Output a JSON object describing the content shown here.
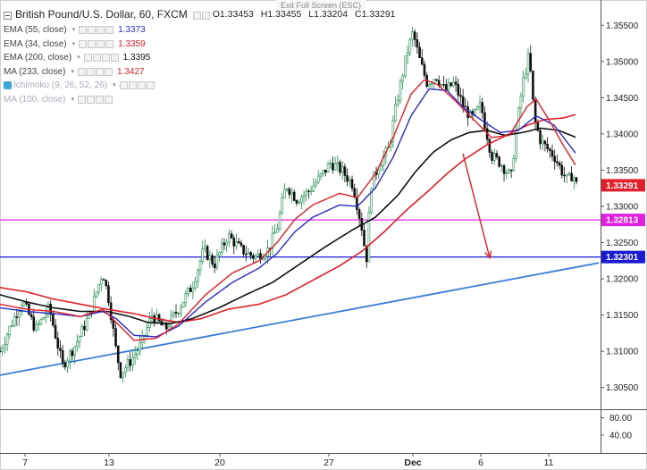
{
  "window": {
    "exit_fullscreen_label": "Exit Full Screen (ESC)"
  },
  "legend": {
    "symbol": "British Pound/U.S. Dollar, 60, FXCM",
    "ohlc": {
      "o": "O1.33453",
      "h": "H1.33455",
      "l": "L1.33204",
      "c": "C1.33291"
    },
    "studies": [
      {
        "name": "EMA (55, close)",
        "value": "1.3373",
        "color": "#2b2bc4"
      },
      {
        "name": "EMA (34, close)",
        "value": "1.3359",
        "color": "#e0202a"
      },
      {
        "name": "EMA (200, close)",
        "value": "1.3395",
        "color": "#111111"
      },
      {
        "name": "MA (233, close)",
        "value": "1.3427",
        "color": "#e0202a"
      },
      {
        "name": "Ichimoku (9, 26, 52, 26)",
        "value": "",
        "color": "#aab"
      },
      {
        "name": "MA (100, close)",
        "value": "",
        "color": "#aab"
      }
    ]
  },
  "chart_data": {
    "type": "candlestick",
    "price_axis": {
      "min": 1.302,
      "max": 1.3575,
      "ticks": [
        "1.35500",
        "1.35000",
        "1.34500",
        "1.34000",
        "1.33500",
        "1.33000",
        "1.32500",
        "1.32000",
        "1.31500",
        "1.31000",
        "1.30500"
      ]
    },
    "price_labels": [
      {
        "value": 1.33291,
        "text": "1.33291",
        "color": "#e0202a"
      },
      {
        "value": 1.32813,
        "text": "1.32813",
        "color": "#e020e0"
      },
      {
        "value": 1.32301,
        "text": "1.32301",
        "color": "#1a1ad0"
      }
    ],
    "lower_pane": {
      "ticks": [
        "80.00",
        "40.00"
      ]
    },
    "x_axis": {
      "labels": [
        {
          "text": "7",
          "bar": 28
        },
        {
          "text": "13",
          "bar": 122
        },
        {
          "text": "20",
          "bar": 246
        },
        {
          "text": "27",
          "bar": 368
        },
        {
          "text": "Dec",
          "bar": 462
        },
        {
          "text": "6",
          "bar": 538
        },
        {
          "text": "11",
          "bar": 614
        }
      ]
    },
    "horizontal_lines": [
      {
        "value": 1.32813,
        "color": "#e020e0"
      },
      {
        "value": 1.32301,
        "color": "#1a1ad0"
      }
    ],
    "trendline": {
      "from": [
        0,
        1.3067
      ],
      "to": [
        670,
        1.3222
      ],
      "color": "#3a7ad8"
    },
    "projection_arrow": {
      "from": [
        518,
        1.3373
      ],
      "to": [
        548,
        1.3229
      ],
      "color": "#e02020"
    },
    "anchors": {
      "price": [
        [
          0,
          1.31
        ],
        [
          10,
          1.313
        ],
        [
          25,
          1.317
        ],
        [
          40,
          1.313
        ],
        [
          55,
          1.316
        ],
        [
          70,
          1.308
        ],
        [
          85,
          1.311
        ],
        [
          100,
          1.315
        ],
        [
          115,
          1.321
        ],
        [
          122,
          1.317
        ],
        [
          130,
          1.31
        ],
        [
          135,
          1.307
        ],
        [
          145,
          1.3085
        ],
        [
          158,
          1.311
        ],
        [
          170,
          1.315
        ],
        [
          185,
          1.313
        ],
        [
          200,
          1.316
        ],
        [
          215,
          1.319
        ],
        [
          228,
          1.324
        ],
        [
          240,
          1.322
        ],
        [
          255,
          1.326
        ],
        [
          270,
          1.324
        ],
        [
          285,
          1.323
        ],
        [
          300,
          1.324
        ],
        [
          310,
          1.327
        ],
        [
          320,
          1.333
        ],
        [
          332,
          1.331
        ],
        [
          345,
          1.332
        ],
        [
          358,
          1.334
        ],
        [
          370,
          1.336
        ],
        [
          382,
          1.335
        ],
        [
          395,
          1.333
        ],
        [
          405,
          1.327
        ],
        [
          410,
          1.3225
        ],
        [
          415,
          1.333
        ],
        [
          425,
          1.336
        ],
        [
          435,
          1.338
        ],
        [
          445,
          1.345
        ],
        [
          455,
          1.351
        ],
        [
          462,
          1.354
        ],
        [
          470,
          1.35
        ],
        [
          478,
          1.347
        ],
        [
          488,
          1.348
        ],
        [
          498,
          1.346
        ],
        [
          508,
          1.347
        ],
        [
          518,
          1.344
        ],
        [
          528,
          1.342
        ],
        [
          538,
          1.344
        ],
        [
          550,
          1.337
        ],
        [
          560,
          1.336
        ],
        [
          572,
          1.334
        ],
        [
          578,
          1.341
        ],
        [
          585,
          1.347
        ],
        [
          592,
          1.351
        ],
        [
          598,
          1.342
        ],
        [
          605,
          1.339
        ],
        [
          612,
          1.338
        ],
        [
          620,
          1.337
        ],
        [
          628,
          1.335
        ],
        [
          635,
          1.3335
        ],
        [
          641,
          1.3345
        ],
        [
          645,
          1.333
        ]
      ],
      "ema34": [
        [
          0,
          1.3165
        ],
        [
          30,
          1.3158
        ],
        [
          60,
          1.3155
        ],
        [
          90,
          1.3148
        ],
        [
          115,
          1.3158
        ],
        [
          130,
          1.314
        ],
        [
          150,
          1.3115
        ],
        [
          175,
          1.3118
        ],
        [
          200,
          1.3138
        ],
        [
          230,
          1.3178
        ],
        [
          260,
          1.3208
        ],
        [
          290,
          1.3225
        ],
        [
          310,
          1.325
        ],
        [
          330,
          1.3282
        ],
        [
          350,
          1.3302
        ],
        [
          380,
          1.3318
        ],
        [
          400,
          1.3312
        ],
        [
          420,
          1.3345
        ],
        [
          440,
          1.3395
        ],
        [
          460,
          1.3455
        ],
        [
          475,
          1.3475
        ],
        [
          490,
          1.3468
        ],
        [
          510,
          1.3445
        ],
        [
          530,
          1.342
        ],
        [
          550,
          1.3395
        ],
        [
          570,
          1.3398
        ],
        [
          590,
          1.3438
        ],
        [
          600,
          1.3448
        ],
        [
          615,
          1.3418
        ],
        [
          630,
          1.3385
        ],
        [
          645,
          1.3355
        ]
      ],
      "ema55": [
        [
          0,
          1.316
        ],
        [
          30,
          1.3155
        ],
        [
          60,
          1.3152
        ],
        [
          90,
          1.3148
        ],
        [
          115,
          1.3155
        ],
        [
          130,
          1.3145
        ],
        [
          150,
          1.3122
        ],
        [
          175,
          1.312
        ],
        [
          200,
          1.3135
        ],
        [
          230,
          1.3168
        ],
        [
          260,
          1.3195
        ],
        [
          290,
          1.3215
        ],
        [
          310,
          1.3235
        ],
        [
          330,
          1.3265
        ],
        [
          350,
          1.3285
        ],
        [
          380,
          1.3302
        ],
        [
          400,
          1.33
        ],
        [
          420,
          1.3325
        ],
        [
          440,
          1.3368
        ],
        [
          460,
          1.3425
        ],
        [
          480,
          1.3462
        ],
        [
          500,
          1.346
        ],
        [
          520,
          1.3435
        ],
        [
          540,
          1.3418
        ],
        [
          560,
          1.3402
        ],
        [
          580,
          1.3405
        ],
        [
          600,
          1.3425
        ],
        [
          620,
          1.3412
        ],
        [
          645,
          1.3372
        ]
      ],
      "ema200": [
        [
          0,
          1.3178
        ],
        [
          30,
          1.3168
        ],
        [
          60,
          1.316
        ],
        [
          90,
          1.3155
        ],
        [
          120,
          1.3155
        ],
        [
          145,
          1.3148
        ],
        [
          165,
          1.314
        ],
        [
          190,
          1.3138
        ],
        [
          215,
          1.3145
        ],
        [
          245,
          1.316
        ],
        [
          275,
          1.3178
        ],
        [
          305,
          1.3195
        ],
        [
          335,
          1.322
        ],
        [
          365,
          1.3245
        ],
        [
          395,
          1.3268
        ],
        [
          420,
          1.3285
        ],
        [
          445,
          1.3315
        ],
        [
          465,
          1.3348
        ],
        [
          485,
          1.3375
        ],
        [
          505,
          1.3392
        ],
        [
          525,
          1.3402
        ],
        [
          545,
          1.3405
        ],
        [
          565,
          1.3398
        ],
        [
          585,
          1.3402
        ],
        [
          605,
          1.3408
        ],
        [
          625,
          1.3405
        ],
        [
          645,
          1.3395
        ]
      ],
      "ma233": [
        [
          0,
          1.3188
        ],
        [
          30,
          1.3182
        ],
        [
          60,
          1.3172
        ],
        [
          90,
          1.3165
        ],
        [
          120,
          1.3158
        ],
        [
          150,
          1.3152
        ],
        [
          175,
          1.3145
        ],
        [
          200,
          1.314
        ],
        [
          225,
          1.3145
        ],
        [
          255,
          1.3158
        ],
        [
          290,
          1.3165
        ],
        [
          320,
          1.3178
        ],
        [
          350,
          1.3198
        ],
        [
          380,
          1.3218
        ],
        [
          405,
          1.3238
        ],
        [
          430,
          1.3265
        ],
        [
          455,
          1.3295
        ],
        [
          480,
          1.3322
        ],
        [
          500,
          1.3345
        ],
        [
          520,
          1.3365
        ],
        [
          545,
          1.3385
        ],
        [
          570,
          1.34
        ],
        [
          590,
          1.3412
        ],
        [
          610,
          1.342
        ],
        [
          630,
          1.3422
        ],
        [
          645,
          1.3427
        ]
      ]
    },
    "candle_count": 240,
    "candle_colors": {
      "up": "#1f8f4f",
      "down": "#111111"
    }
  }
}
